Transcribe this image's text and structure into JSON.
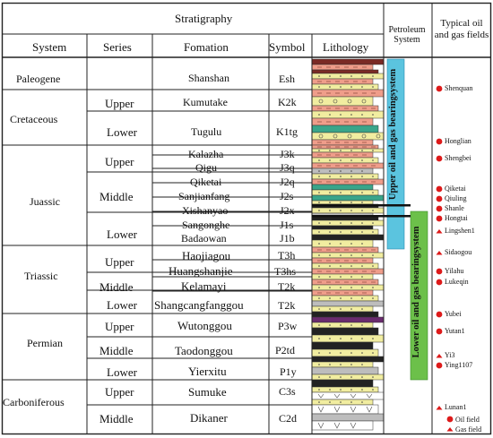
{
  "header": {
    "stratigraphy": "Stratigraphy",
    "system": "System",
    "series": "Series",
    "formation": "Fomation",
    "symbol": "Symbol",
    "lithology": "Lithology",
    "petroleum_system": "Petroleum System",
    "typical_fields": "Typical oil and gas fields"
  },
  "systems": [
    "Paleogene",
    "Cretaceous",
    "Juassic",
    "Triassic",
    "Permian",
    "Carboniferous"
  ],
  "series": [
    "Upper",
    "Lower",
    "Upper",
    "Middle",
    "Lower",
    "Upper",
    "Middle",
    "Lower",
    "Upper",
    "Middle",
    "Lower",
    "Upper",
    "Middle"
  ],
  "formations": [
    {
      "name": "Shanshan",
      "symbol": "Esh"
    },
    {
      "name": "Kumutake",
      "symbol": "K2k"
    },
    {
      "name": "Tugulu",
      "symbol": "K1tg"
    },
    {
      "name": "Kalazha",
      "symbol": "J3k"
    },
    {
      "name": "Qigu",
      "symbol": "J3q"
    },
    {
      "name": "Qiketai",
      "symbol": "J2q"
    },
    {
      "name": "Sanjianfang",
      "symbol": "J2s"
    },
    {
      "name": "Xishanyao",
      "symbol": "J2x"
    },
    {
      "name": "Sangonghe",
      "symbol": "J1s"
    },
    {
      "name": "Badaowan",
      "symbol": "J1b"
    },
    {
      "name": "Haojiagou",
      "symbol": "T3h"
    },
    {
      "name": "Huangshanjie",
      "symbol": "T3hs"
    },
    {
      "name": "Kelamayi",
      "symbol": "T2k"
    },
    {
      "name": "Shangcangfanggou",
      "symbol": "T2k"
    },
    {
      "name": "Wutonggou",
      "symbol": "P3w"
    },
    {
      "name": "Taodonggou",
      "symbol": "P2td"
    },
    {
      "name": "Yierxitu",
      "symbol": "P1y"
    },
    {
      "name": "Sumuke",
      "symbol": "C3s"
    },
    {
      "name": "Dikaner",
      "symbol": "C2d"
    }
  ],
  "petroleum_systems": [
    "Upper oil and gas bearingsystem",
    "Lower oil and gas bearingsystem"
  ],
  "fields": [
    {
      "name": "Shenquan",
      "kind": "oil"
    },
    {
      "name": "Honglian",
      "kind": "oil"
    },
    {
      "name": "Shengbei",
      "kind": "oil"
    },
    {
      "name": "Qiketai",
      "kind": "oil"
    },
    {
      "name": "Qiuling",
      "kind": "oil"
    },
    {
      "name": "Shanle",
      "kind": "oil"
    },
    {
      "name": "Hongtai",
      "kind": "oil"
    },
    {
      "name": "Lingshen1",
      "kind": "gas"
    },
    {
      "name": "Sidaogou",
      "kind": "gas"
    },
    {
      "name": "Yilahu",
      "kind": "oil"
    },
    {
      "name": "Lukeqin",
      "kind": "oil"
    },
    {
      "name": "Yubei",
      "kind": "oil"
    },
    {
      "name": "Yutan1",
      "kind": "oil"
    },
    {
      "name": "Yi3",
      "kind": "gas"
    },
    {
      "name": "Ying1107",
      "kind": "oil"
    },
    {
      "name": "Lunan1",
      "kind": "gas"
    }
  ],
  "legend": {
    "oil": "Oil field",
    "gas": "Gas field"
  },
  "colors": {
    "sandstone": "#f1eda0",
    "mudstone_red": "#ef9d8a",
    "coal": "#222222",
    "teal": "#3aa58a",
    "purple": "#6a2b6e",
    "maroon": "#7a2a25",
    "gray": "#bdbdbd",
    "upper_bar": "#5bc4df",
    "lower_bar": "#6cc04a",
    "system_text": "#c2161c",
    "marker": "#dd1a1a"
  }
}
